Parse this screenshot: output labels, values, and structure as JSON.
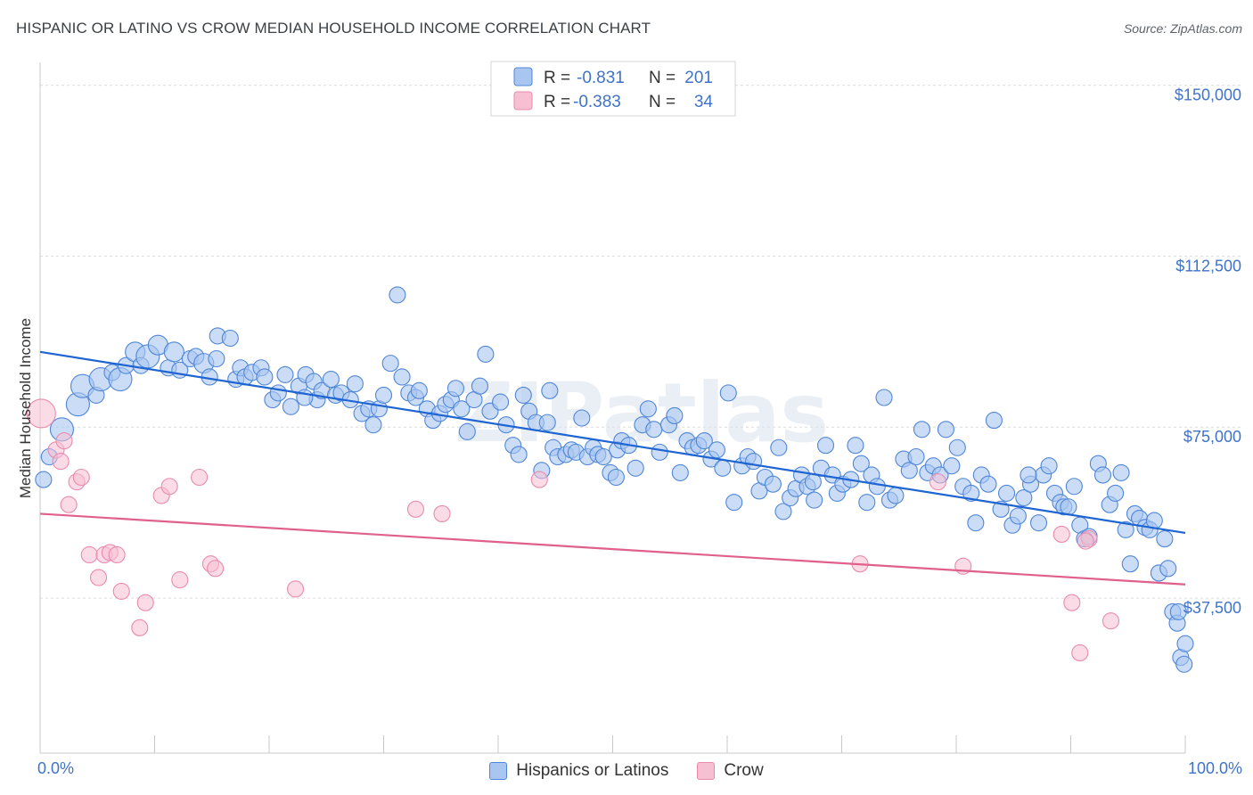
{
  "title": "HISPANIC OR LATINO VS CROW MEDIAN HOUSEHOLD INCOME CORRELATION CHART",
  "source": "Source: ZipAtlas.com",
  "watermark": "ZIPatlas",
  "colors": {
    "blue_fill": "#a9c6f0",
    "blue_stroke": "#4f86d8",
    "blue_line": "#1f65d2",
    "pink_fill": "#f7bfd2",
    "pink_stroke": "#e98aae",
    "pink_line": "#e0608c",
    "tick_text": "#3f73c8"
  },
  "legend": {
    "r_label": "R =",
    "n_label": "N =",
    "rows": [
      {
        "r": "-0.831",
        "n": "201"
      },
      {
        "r": "-0.383",
        "n": "34"
      }
    ]
  },
  "bottom_legend": [
    "Hispanics or Latinos",
    "Crow"
  ],
  "chart_data": {
    "type": "scatter",
    "xlabel": "",
    "ylabel": "Median Household Income",
    "xlim": [
      0,
      100
    ],
    "ylim": [
      3500,
      155000
    ],
    "x_tick_labels": [
      "0.0%",
      "100.0%"
    ],
    "y_ticks": [
      37500,
      75000,
      112500,
      150000
    ],
    "y_tick_labels": [
      "$37,500",
      "$75,000",
      "$112,500",
      "$150,000"
    ],
    "series": [
      {
        "name": "Hispanics or Latinos",
        "trend": {
          "x": [
            0,
            100
          ],
          "y": [
            91500,
            51800
          ]
        },
        "points": [
          [
            0.3,
            63500,
            9
          ],
          [
            0.8,
            68500,
            9
          ],
          [
            1.9,
            74500,
            13
          ],
          [
            3.3,
            80000,
            13
          ],
          [
            3.7,
            84000,
            13
          ],
          [
            4.9,
            82000,
            9
          ],
          [
            5.3,
            85500,
            13
          ],
          [
            6.3,
            87000,
            9
          ],
          [
            7.0,
            85500,
            13
          ],
          [
            7.5,
            88500,
            9
          ],
          [
            8.3,
            91500,
            11
          ],
          [
            8.8,
            88500,
            9
          ],
          [
            9.4,
            90500,
            13
          ],
          [
            10.3,
            93000,
            11
          ],
          [
            11.2,
            88000,
            9
          ],
          [
            11.7,
            91500,
            11
          ],
          [
            12.2,
            87500,
            9
          ],
          [
            13.1,
            90000,
            9
          ],
          [
            13.6,
            90500,
            9
          ],
          [
            14.3,
            89000,
            11
          ],
          [
            14.8,
            86000,
            9
          ],
          [
            15.4,
            90000,
            9
          ],
          [
            15.5,
            95000,
            9
          ],
          [
            16.6,
            94500,
            9
          ],
          [
            17.1,
            85500,
            9
          ],
          [
            17.5,
            88000,
            9
          ],
          [
            17.9,
            86000,
            9
          ],
          [
            18.5,
            87000,
            9
          ],
          [
            19.3,
            88000,
            9
          ],
          [
            19.6,
            86000,
            9
          ],
          [
            20.3,
            81000,
            9
          ],
          [
            20.8,
            82500,
            9
          ],
          [
            21.4,
            86500,
            9
          ],
          [
            21.9,
            79500,
            9
          ],
          [
            22.6,
            84000,
            9
          ],
          [
            23.2,
            86500,
            9
          ],
          [
            23.9,
            85000,
            9
          ],
          [
            24.2,
            81000,
            9
          ],
          [
            24.6,
            83000,
            9
          ],
          [
            25.4,
            85500,
            9
          ],
          [
            25.8,
            82000,
            9
          ],
          [
            26.3,
            82500,
            9
          ],
          [
            27.1,
            81000,
            9
          ],
          [
            27.5,
            84500,
            9
          ],
          [
            28.1,
            78000,
            9
          ],
          [
            28.7,
            79000,
            9
          ],
          [
            29.1,
            75500,
            9
          ],
          [
            29.6,
            79000,
            9
          ],
          [
            30.0,
            82000,
            9
          ],
          [
            30.6,
            89000,
            9
          ],
          [
            31.2,
            104000,
            9
          ],
          [
            31.6,
            86000,
            9
          ],
          [
            32.2,
            82500,
            9
          ],
          [
            32.8,
            81500,
            9
          ],
          [
            33.1,
            83000,
            9
          ],
          [
            33.8,
            79000,
            9
          ],
          [
            34.3,
            76500,
            9
          ],
          [
            34.9,
            78000,
            9
          ],
          [
            35.4,
            80000,
            9
          ],
          [
            35.9,
            81000,
            9
          ],
          [
            36.3,
            83500,
            9
          ],
          [
            36.8,
            79000,
            9
          ],
          [
            37.3,
            74000,
            9
          ],
          [
            37.9,
            81000,
            9
          ],
          [
            38.4,
            84000,
            9
          ],
          [
            38.9,
            91000,
            9
          ],
          [
            39.3,
            78500,
            9
          ],
          [
            40.2,
            80500,
            9
          ],
          [
            40.7,
            75500,
            9
          ],
          [
            41.3,
            71000,
            9
          ],
          [
            41.8,
            69000,
            9
          ],
          [
            42.2,
            82000,
            9
          ],
          [
            42.7,
            78500,
            9
          ],
          [
            43.3,
            76000,
            9
          ],
          [
            43.8,
            65500,
            9
          ],
          [
            44.3,
            76000,
            9
          ],
          [
            44.8,
            70500,
            9
          ],
          [
            45.2,
            68500,
            9
          ],
          [
            45.9,
            69000,
            9
          ],
          [
            46.4,
            70000,
            9
          ],
          [
            46.8,
            69500,
            9
          ],
          [
            47.3,
            77000,
            9
          ],
          [
            47.8,
            68500,
            9
          ],
          [
            48.3,
            70500,
            9
          ],
          [
            48.7,
            69000,
            9
          ],
          [
            49.2,
            68500,
            9
          ],
          [
            49.8,
            65000,
            9
          ],
          [
            50.4,
            70000,
            9
          ],
          [
            50.8,
            72000,
            9
          ],
          [
            51.4,
            71000,
            9
          ],
          [
            52.0,
            66000,
            9
          ],
          [
            52.6,
            75500,
            9
          ],
          [
            53.1,
            79000,
            9
          ],
          [
            53.6,
            74500,
            9
          ],
          [
            54.1,
            69500,
            9
          ],
          [
            54.9,
            75500,
            9
          ],
          [
            55.4,
            77500,
            9
          ],
          [
            55.9,
            65000,
            9
          ],
          [
            56.5,
            72000,
            9
          ],
          [
            57.0,
            70500,
            9
          ],
          [
            57.5,
            71000,
            9
          ],
          [
            58.0,
            72000,
            9
          ],
          [
            58.6,
            68000,
            9
          ],
          [
            59.1,
            70000,
            9
          ],
          [
            59.6,
            66000,
            9
          ],
          [
            60.1,
            82500,
            9
          ],
          [
            60.6,
            58500,
            9
          ],
          [
            61.3,
            66500,
            9
          ],
          [
            61.8,
            68500,
            9
          ],
          [
            62.3,
            67500,
            9
          ],
          [
            62.8,
            61000,
            9
          ],
          [
            63.3,
            64000,
            9
          ],
          [
            64.0,
            62500,
            9
          ],
          [
            64.5,
            70500,
            9
          ],
          [
            64.9,
            56500,
            9
          ],
          [
            65.5,
            59500,
            9
          ],
          [
            66.0,
            61500,
            9
          ],
          [
            66.5,
            64500,
            9
          ],
          [
            67.0,
            62000,
            9
          ],
          [
            67.5,
            63000,
            9
          ],
          [
            68.2,
            66000,
            9
          ],
          [
            68.6,
            71000,
            9
          ],
          [
            69.2,
            64500,
            9
          ],
          [
            69.6,
            60500,
            9
          ],
          [
            70.1,
            62500,
            9
          ],
          [
            70.8,
            63500,
            9
          ],
          [
            71.2,
            71000,
            9
          ],
          [
            71.7,
            67000,
            9
          ],
          [
            72.2,
            58500,
            9
          ],
          [
            72.6,
            64500,
            9
          ],
          [
            73.1,
            62000,
            9
          ],
          [
            73.7,
            81500,
            9
          ],
          [
            74.2,
            59000,
            9
          ],
          [
            74.7,
            60000,
            9
          ],
          [
            75.4,
            68000,
            9
          ],
          [
            75.9,
            65500,
            9
          ],
          [
            76.5,
            68500,
            9
          ],
          [
            77.0,
            74500,
            9
          ],
          [
            77.5,
            65000,
            9
          ],
          [
            78.0,
            66500,
            9
          ],
          [
            78.6,
            64500,
            9
          ],
          [
            79.1,
            74500,
            9
          ],
          [
            79.6,
            66500,
            9
          ],
          [
            80.1,
            70500,
            9
          ],
          [
            80.6,
            62000,
            9
          ],
          [
            81.3,
            60500,
            9
          ],
          [
            81.7,
            54000,
            9
          ],
          [
            82.2,
            64500,
            9
          ],
          [
            82.8,
            62500,
            9
          ],
          [
            83.3,
            76500,
            9
          ],
          [
            83.9,
            57000,
            9
          ],
          [
            84.4,
            60500,
            9
          ],
          [
            84.9,
            53500,
            9
          ],
          [
            85.4,
            55500,
            9
          ],
          [
            85.9,
            59500,
            9
          ],
          [
            86.5,
            62500,
            9
          ],
          [
            87.2,
            54000,
            9
          ],
          [
            87.6,
            64500,
            9
          ],
          [
            88.1,
            66500,
            9
          ],
          [
            88.6,
            60500,
            9
          ],
          [
            89.1,
            58500,
            9
          ],
          [
            89.4,
            57500,
            9
          ],
          [
            89.8,
            57500,
            9
          ],
          [
            90.3,
            62000,
            9
          ],
          [
            90.8,
            53500,
            9
          ],
          [
            91.2,
            50500,
            9
          ],
          [
            91.6,
            51000,
            9
          ],
          [
            92.4,
            67000,
            9
          ],
          [
            92.8,
            64500,
            9
          ],
          [
            93.4,
            58000,
            9
          ],
          [
            93.9,
            60500,
            9
          ],
          [
            94.4,
            65000,
            9
          ],
          [
            94.8,
            52500,
            9
          ],
          [
            95.2,
            45000,
            9
          ],
          [
            95.6,
            56000,
            9
          ],
          [
            96.0,
            55000,
            9
          ],
          [
            96.5,
            53000,
            9
          ],
          [
            96.9,
            52500,
            9
          ],
          [
            97.3,
            54500,
            9
          ],
          [
            97.7,
            43000,
            9
          ],
          [
            98.2,
            50500,
            9
          ],
          [
            98.5,
            44000,
            9
          ],
          [
            98.9,
            34500,
            9
          ],
          [
            99.3,
            32000,
            9
          ],
          [
            99.6,
            24500,
            9
          ],
          [
            100.0,
            27500,
            9
          ],
          [
            99.9,
            23000,
            9
          ],
          [
            99.4,
            34500,
            9
          ],
          [
            44.5,
            83000,
            9
          ],
          [
            23.1,
            81500,
            9
          ],
          [
            50.3,
            64000,
            9
          ],
          [
            67.6,
            59000,
            9
          ],
          [
            86.3,
            64500,
            9
          ]
        ]
      },
      {
        "name": "Crow",
        "trend": {
          "x": [
            0,
            100
          ],
          "y": [
            56000,
            40500
          ]
        },
        "points": [
          [
            0.1,
            78000,
            16
          ],
          [
            1.4,
            70000,
            9
          ],
          [
            1.8,
            67500,
            9
          ],
          [
            2.1,
            72000,
            9
          ],
          [
            2.5,
            58000,
            9
          ],
          [
            3.2,
            63000,
            9
          ],
          [
            3.6,
            64000,
            9
          ],
          [
            4.3,
            47000,
            9
          ],
          [
            5.1,
            42000,
            9
          ],
          [
            5.6,
            47000,
            9
          ],
          [
            6.1,
            47500,
            9
          ],
          [
            6.7,
            47000,
            9
          ],
          [
            7.1,
            39000,
            9
          ],
          [
            8.7,
            31000,
            9
          ],
          [
            9.2,
            36500,
            9
          ],
          [
            10.6,
            60000,
            9
          ],
          [
            11.3,
            62000,
            9
          ],
          [
            12.2,
            41500,
            9
          ],
          [
            13.9,
            64000,
            9
          ],
          [
            14.9,
            45000,
            9
          ],
          [
            15.3,
            44000,
            9
          ],
          [
            22.3,
            39500,
            9
          ],
          [
            32.8,
            57000,
            9
          ],
          [
            35.1,
            56000,
            9
          ],
          [
            43.6,
            63500,
            9
          ],
          [
            71.6,
            45000,
            9
          ],
          [
            78.4,
            63000,
            9
          ],
          [
            80.6,
            44500,
            9
          ],
          [
            89.2,
            51500,
            9
          ],
          [
            90.1,
            36500,
            9
          ],
          [
            90.8,
            25500,
            9
          ],
          [
            91.6,
            50500,
            9
          ],
          [
            93.5,
            32500,
            9
          ],
          [
            91.3,
            50000,
            9
          ]
        ]
      }
    ]
  }
}
